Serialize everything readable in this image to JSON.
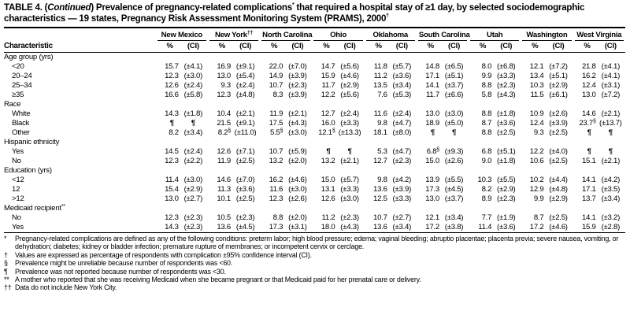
{
  "title": {
    "part1": "TABLE 4. (",
    "continued": "Continued",
    "part2": ") Prevalence of pregnancy-related complications",
    "sup1": "*",
    "part3": " that required a hospital stay of ≥1 day, by selected sociodemographic characteristics — 19 states, Pregnancy Risk Assessment Monitoring System (PRAMS), 2000",
    "sup2": "†"
  },
  "table": {
    "characteristic_header": "Characteristic",
    "pct_header": "%",
    "ci_header": "(CI)",
    "states": [
      {
        "name": "New Mexico",
        "sup": ""
      },
      {
        "name": "New York",
        "sup": "††"
      },
      {
        "name": "North Carolina",
        "sup": ""
      },
      {
        "name": "Ohio",
        "sup": ""
      },
      {
        "name": "Oklahoma",
        "sup": ""
      },
      {
        "name": "South Carolina",
        "sup": ""
      },
      {
        "name": "Utah",
        "sup": ""
      },
      {
        "name": "Washington",
        "sup": ""
      },
      {
        "name": "West Virginia",
        "sup": ""
      }
    ],
    "sections": [
      {
        "label": "Age group (yrs)",
        "sup": "",
        "rows": [
          {
            "label": "<20",
            "cells": [
              [
                "15.7",
                "",
                "(±4.1)"
              ],
              [
                "16.9",
                "",
                "(±9.1)"
              ],
              [
                "22.0",
                "",
                "(±7.0)"
              ],
              [
                "14.7",
                "",
                "(±5.6)"
              ],
              [
                "11.8",
                "",
                "(±5.7)"
              ],
              [
                "14.8",
                "",
                "(±6.5)"
              ],
              [
                "8.0",
                "",
                "(±6.8)"
              ],
              [
                "12.1",
                "",
                "(±7.2)"
              ],
              [
                "21.8",
                "",
                "(±4.1)"
              ]
            ]
          },
          {
            "label": "20–24",
            "cells": [
              [
                "12.3",
                "",
                "(±3.0)"
              ],
              [
                "13.0",
                "",
                "(±5.4)"
              ],
              [
                "14.9",
                "",
                "(±3.9)"
              ],
              [
                "15.9",
                "",
                "(±4.6)"
              ],
              [
                "11.2",
                "",
                "(±3.6)"
              ],
              [
                "17.1",
                "",
                "(±5.1)"
              ],
              [
                "9.9",
                "",
                "(±3.3)"
              ],
              [
                "13.4",
                "",
                "(±5.1)"
              ],
              [
                "16.2",
                "",
                "(±4.1)"
              ]
            ]
          },
          {
            "label": "25–34",
            "cells": [
              [
                "12.6",
                "",
                "(±2.4)"
              ],
              [
                "9.3",
                "",
                "(±2.4)"
              ],
              [
                "10.7",
                "",
                "(±2.3)"
              ],
              [
                "11.7",
                "",
                "(±2.9)"
              ],
              [
                "13.5",
                "",
                "(±3.4)"
              ],
              [
                "14.1",
                "",
                "(±3.7)"
              ],
              [
                "8.8",
                "",
                "(±2.3)"
              ],
              [
                "10.3",
                "",
                "(±2.9)"
              ],
              [
                "12.4",
                "",
                "(±3.1)"
              ]
            ]
          },
          {
            "label": "≥35",
            "cells": [
              [
                "16.6",
                "",
                "(±5.8)"
              ],
              [
                "12.3",
                "",
                "(±4.8)"
              ],
              [
                "8.3",
                "",
                "(±3.9)"
              ],
              [
                "12.2",
                "",
                "(±5.6)"
              ],
              [
                "7.6",
                "",
                "(±5.3)"
              ],
              [
                "11.7",
                "",
                "(±6.6)"
              ],
              [
                "5.8",
                "",
                "(±4.3)"
              ],
              [
                "11.5",
                "",
                "(±6.1)"
              ],
              [
                "13.0",
                "",
                "(±7.2)"
              ]
            ]
          }
        ]
      },
      {
        "label": "Race",
        "sup": "",
        "rows": [
          {
            "label": "White",
            "cells": [
              [
                "14.3",
                "",
                "(±1.8)"
              ],
              [
                "10.4",
                "",
                "(±2.1)"
              ],
              [
                "11.9",
                "",
                "(±2.1)"
              ],
              [
                "12.7",
                "",
                "(±2.4)"
              ],
              [
                "11.6",
                "",
                "(±2.4)"
              ],
              [
                "13.0",
                "",
                "(±3.0)"
              ],
              [
                "8.8",
                "",
                "(±1.8)"
              ],
              [
                "10.9",
                "",
                "(±2.6)"
              ],
              [
                "14.6",
                "",
                "(±2.1)"
              ]
            ]
          },
          {
            "label": "Black",
            "cells": [
              [
                "¶",
                "",
                "¶"
              ],
              [
                "21.5",
                "",
                "(±9.1)"
              ],
              [
                "17.5",
                "",
                "(±4.3)"
              ],
              [
                "16.0",
                "",
                "(±3.3)"
              ],
              [
                "9.8",
                "",
                "(±4.7)"
              ],
              [
                "18.9",
                "",
                "(±5.0)"
              ],
              [
                "8.7",
                "",
                "(±3.6)"
              ],
              [
                "12.4",
                "",
                "(±3.9)"
              ],
              [
                "23.7",
                "§",
                "(±13.7)"
              ]
            ]
          },
          {
            "label": "Other",
            "cells": [
              [
                "8.2",
                "",
                "(±3.4)"
              ],
              [
                "8.2",
                "§",
                "(±11.0)"
              ],
              [
                "5.5",
                "§",
                "(±3.0)"
              ],
              [
                "12.1",
                "§",
                "(±13.3)"
              ],
              [
                "18.1",
                "",
                "(±8.0)"
              ],
              [
                "¶",
                "",
                "¶"
              ],
              [
                "8.8",
                "",
                "(±2.5)"
              ],
              [
                "9.3",
                "",
                "(±2.5)"
              ],
              [
                "¶",
                "",
                "¶"
              ]
            ]
          }
        ]
      },
      {
        "label": "Hispanic ethnicity",
        "sup": "",
        "rows": [
          {
            "label": "Yes",
            "cells": [
              [
                "14.5",
                "",
                "(±2.4)"
              ],
              [
                "12.6",
                "",
                "(±7.1)"
              ],
              [
                "10.7",
                "",
                "(±5.9)"
              ],
              [
                "¶",
                "",
                "¶"
              ],
              [
                "5.3",
                "",
                "(±4.7)"
              ],
              [
                "6.8",
                "§",
                "(±9.3)"
              ],
              [
                "6.8",
                "",
                "(±5.1)"
              ],
              [
                "12.2",
                "",
                "(±4.0)"
              ],
              [
                "¶",
                "",
                "¶"
              ]
            ]
          },
          {
            "label": "No",
            "cells": [
              [
                "12.3",
                "",
                "(±2.2)"
              ],
              [
                "11.9",
                "",
                "(±2.5)"
              ],
              [
                "13.2",
                "",
                "(±2.0)"
              ],
              [
                "13.2",
                "",
                "(±2.1)"
              ],
              [
                "12.7",
                "",
                "(±2.3)"
              ],
              [
                "15.0",
                "",
                "(±2.6)"
              ],
              [
                "9.0",
                "",
                "(±1.8)"
              ],
              [
                "10.6",
                "",
                "(±2.5)"
              ],
              [
                "15.1",
                "",
                "(±2.1)"
              ]
            ]
          }
        ]
      },
      {
        "label": "Education (yrs)",
        "sup": "",
        "rows": [
          {
            "label": "<12",
            "cells": [
              [
                "11.4",
                "",
                "(±3.0)"
              ],
              [
                "14.6",
                "",
                "(±7.0)"
              ],
              [
                "16.2",
                "",
                "(±4.6)"
              ],
              [
                "15.0",
                "",
                "(±5.7)"
              ],
              [
                "9.8",
                "",
                "(±4.2)"
              ],
              [
                "13.9",
                "",
                "(±5.5)"
              ],
              [
                "10.3",
                "",
                "(±5.5)"
              ],
              [
                "10.2",
                "",
                "(±4.4)"
              ],
              [
                "14.1",
                "",
                "(±4.2)"
              ]
            ]
          },
          {
            "label": "12",
            "cells": [
              [
                "15.4",
                "",
                "(±2.9)"
              ],
              [
                "11.3",
                "",
                "(±3.6)"
              ],
              [
                "11.6",
                "",
                "(±3.0)"
              ],
              [
                "13.1",
                "",
                "(±3.3)"
              ],
              [
                "13.6",
                "",
                "(±3.9)"
              ],
              [
                "17.3",
                "",
                "(±4.5)"
              ],
              [
                "8.2",
                "",
                "(±2.9)"
              ],
              [
                "12.9",
                "",
                "(±4.8)"
              ],
              [
                "17.1",
                "",
                "(±3.5)"
              ]
            ]
          },
          {
            "label": ">12",
            "cells": [
              [
                "13.0",
                "",
                "(±2.7)"
              ],
              [
                "10.1",
                "",
                "(±2.5)"
              ],
              [
                "12.3",
                "",
                "(±2.6)"
              ],
              [
                "12.6",
                "",
                "(±3.0)"
              ],
              [
                "12.5",
                "",
                "(±3.3)"
              ],
              [
                "13.0",
                "",
                "(±3.7)"
              ],
              [
                "8.9",
                "",
                "(±2.3)"
              ],
              [
                "9.9",
                "",
                "(±2.9)"
              ],
              [
                "13.7",
                "",
                "(±3.4)"
              ]
            ]
          }
        ]
      },
      {
        "label": "Medicaid recipient",
        "sup": "**",
        "rows": [
          {
            "label": "No",
            "cells": [
              [
                "12.3",
                "",
                "(±2.3)"
              ],
              [
                "10.5",
                "",
                "(±2.3)"
              ],
              [
                "8.8",
                "",
                "(±2.0)"
              ],
              [
                "11.2",
                "",
                "(±2.3)"
              ],
              [
                "10.7",
                "",
                "(±2.7)"
              ],
              [
                "12.1",
                "",
                "(±3.4)"
              ],
              [
                "7.7",
                "",
                "(±1.9)"
              ],
              [
                "8.7",
                "",
                "(±2.5)"
              ],
              [
                "14.1",
                "",
                "(±3.2)"
              ]
            ]
          },
          {
            "label": "Yes",
            "cells": [
              [
                "14.3",
                "",
                "(±2.3)"
              ],
              [
                "13.6",
                "",
                "(±4.5)"
              ],
              [
                "17.3",
                "",
                "(±3.1)"
              ],
              [
                "18.0",
                "",
                "(±4.3)"
              ],
              [
                "13.6",
                "",
                "(±3.4)"
              ],
              [
                "17.2",
                "",
                "(±3.8)"
              ],
              [
                "11.4",
                "",
                "(±3.6)"
              ],
              [
                "17.2",
                "",
                "(±4.6)"
              ],
              [
                "15.9",
                "",
                "(±2.8)"
              ]
            ]
          }
        ]
      }
    ]
  },
  "footnotes": [
    {
      "symbol": "*",
      "text": "Pregnancy-related complications are defined as any of the following conditions: preterm labor; high blood pressure; edema; vaginal bleeding; abruptio placentae; placenta previa; severe nausea, vomiting, or dehydration; diabetes; kidney or bladder infection; premature rupture of membranes; or incompetent cervix or cerclage."
    },
    {
      "symbol": "†",
      "text": "Values are expressed as percentage of respondents with complication ±95% confidence interval (CI)."
    },
    {
      "symbol": "§",
      "text": "Prevalence might be unreliable because number of respondents was <60."
    },
    {
      "symbol": "¶",
      "text": "Prevalence was not reported because number of respondents was <30."
    },
    {
      "symbol": "**",
      "text": "A mother who reported that she was receiving Medicaid when she became pregnant or that Medicaid paid for her prenatal care or delivery."
    },
    {
      "symbol": "††",
      "text": "Data do not include New York City."
    }
  ]
}
